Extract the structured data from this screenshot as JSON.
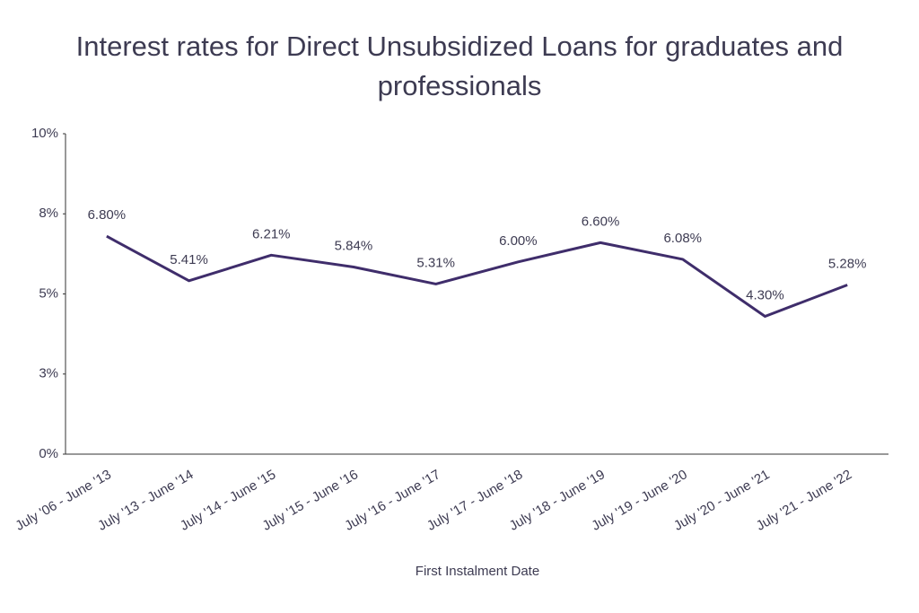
{
  "chart_data": {
    "type": "line",
    "title": "Interest rates for Direct Unsubsidized Loans for graduates and professionals",
    "x_label": "First Instalment Date",
    "categories": [
      "July '06 - June '13",
      "July '13 - June '14",
      "July '14 - June '15",
      "July '15 - June '16",
      "July '16 - June '17",
      "July '17 - June '18",
      "July '18 - June '19",
      "July '19 - June '20",
      "July '20 - June '21",
      "July '21 - June '22"
    ],
    "values": [
      6.8,
      5.41,
      6.21,
      5.84,
      5.31,
      6.0,
      6.6,
      6.08,
      4.3,
      5.28
    ],
    "value_labels": [
      "6.80%",
      "5.41%",
      "6.21%",
      "5.84%",
      "5.31%",
      "6.00%",
      "6.60%",
      "6.08%",
      "4.30%",
      "5.28%"
    ],
    "color": "#3f2d6b",
    "ylim": [
      0,
      10
    ],
    "yticks": [
      {
        "value": 0,
        "label": "0%"
      },
      {
        "value": 2.5,
        "label": "3%"
      },
      {
        "value": 5,
        "label": "5%"
      },
      {
        "value": 7.5,
        "label": "8%"
      },
      {
        "value": 10,
        "label": "10%"
      }
    ],
    "grid": false
  }
}
